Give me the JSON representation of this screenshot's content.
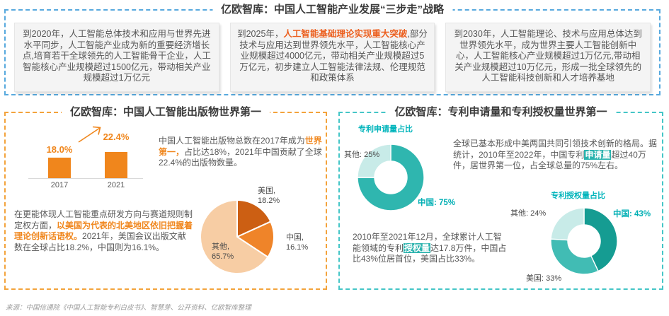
{
  "page": {
    "footer": "来源：中国信通院《中国人工智能专利白皮书》、智慧芽、公开资料、亿欧智库整理"
  },
  "strategy": {
    "title": "亿欧智库：中国人工智能产业发展“三步走”战略",
    "boxes": [
      {
        "year": "2020",
        "segments": [
          {
            "t": "到2020年，人工智能总体技术和应用与世界先进水平同步，人工智能产业成为新的重要经济增长点,培育若干全球领先的人工智能骨干企业，人工智能核心产业规模超过1500亿元，带动相关产业规模超过1万亿元"
          }
        ]
      },
      {
        "year": "2025",
        "segments": [
          {
            "t": "到2025年，"
          },
          {
            "t": "人工智能基础理论实现重大突破",
            "s": "hl-strong-orange"
          },
          {
            "t": ",部分技术与应用达到世界领先水平，人工智能核心产业规模超过4000亿元，带动相关产业规模超过5万亿元，初步建立人工智能法律法规、伦理规范和政策体系"
          }
        ]
      },
      {
        "year": "2030",
        "segments": [
          {
            "t": "到2030年，人工智能理论、技术与应用总体达到世界领先水平，成为世界主要人工智能创新中心，人工智能核心产业规模超过1万亿元,带动相关产业规模超过10万亿元，形成一批全球领先的人工智能科技创新和人才培养基地"
          }
        ]
      }
    ]
  },
  "publications": {
    "title": "亿欧智库：中国人工智能出版物世界第一",
    "para1": {
      "segments": [
        {
          "t": "中国人工智能出版物总数在2017年成为"
        },
        {
          "t": "世界第一，",
          "s": "hl-orange"
        },
        {
          "t": "占比达18%，2021年中国贡献了全球22.4%的出版物数量。"
        }
      ]
    },
    "para2": {
      "segments": [
        {
          "t": "在更能体现人工智能重点研发方向与赛道规则制定权方面，"
        },
        {
          "t": "以美国为代表的北美地区依旧把握着理论创新话语权。",
          "s": "hl-orange"
        },
        {
          "t": "2021年，美国会议出版文献数在全球占比18.2%，中国则为16.1%。"
        }
      ]
    }
  },
  "patents": {
    "title": "亿欧智库：专利申请量和专利授权量世界第一",
    "para1": {
      "segments": [
        {
          "t": "全球已基本形成中美两国共同引领技术创新的格局。据统计，2010年至2022年，中国专利"
        },
        {
          "t": "申请量",
          "s": "hl-teal-bg"
        },
        {
          "t": "超过40万件，居世界第一位，占全球总量的75%左右。"
        }
      ]
    },
    "para2": {
      "segments": [
        {
          "t": "2010年至2021年12月，全球累计人工智能领域的专利"
        },
        {
          "t": "授权量",
          "s": "hl-teal-bg"
        },
        {
          "t": "达17.8万件，中国占比43%位居首位，美国占比33%。"
        }
      ]
    }
  },
  "chart_data": [
    {
      "type": "bar",
      "categories": [
        "2017",
        "2021"
      ],
      "values": [
        18.0,
        22.4
      ],
      "labels": [
        "18.0%",
        "22.4%"
      ],
      "unit": "%",
      "bar_color": "#F0861C",
      "title": "",
      "xlabel": "",
      "ylabel": ""
    },
    {
      "type": "pie",
      "slices": [
        {
          "label": "美国",
          "value": 18.2,
          "color": "#CC5F13"
        },
        {
          "label": "中国",
          "value": 16.1,
          "color": "#EF8429"
        },
        {
          "label": "其他",
          "value": 65.7,
          "color": "#F7CDA4"
        }
      ]
    },
    {
      "type": "pie",
      "title": "专利申请量占比",
      "donut": true,
      "slices": [
        {
          "label": "中国",
          "value": 75,
          "color": "#2FB6AF"
        },
        {
          "label": "其他",
          "value": 25,
          "color": "#C8EBE8"
        }
      ]
    },
    {
      "type": "pie",
      "title": "专利授权量占比",
      "donut": true,
      "slices": [
        {
          "label": "中国",
          "value": 43,
          "color": "#159C92"
        },
        {
          "label": "美国",
          "value": 33,
          "color": "#41BCB4"
        },
        {
          "label": "其他",
          "value": 24,
          "color": "#C8EBE8"
        }
      ]
    }
  ],
  "colors": {
    "blue_dash": "#57A9DE",
    "orange_dash": "#F3A33C",
    "teal_dash": "#45C6C7",
    "orange_accent": "#F0861C",
    "strategy_highlight": "#EC5F1E",
    "teal_accent": "#00AFB4",
    "donut_title_teal": "#00B4BB",
    "teal_bg": "#2BB3AE"
  }
}
